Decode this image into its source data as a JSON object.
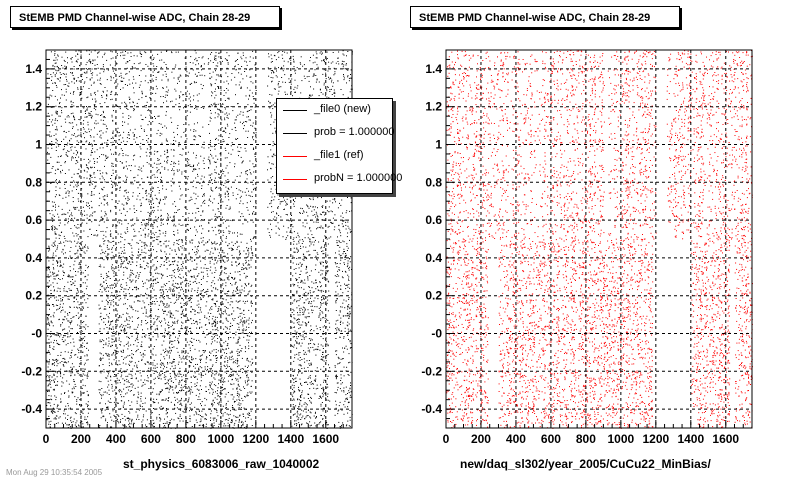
{
  "chart_data": [
    {
      "type": "scatter",
      "title": "StEMB PMD Channel-wise ADC, Chain 28-29",
      "xlabel": "st_physics_6083006_raw_1040002",
      "ylabel": "",
      "xlim": [
        0,
        1750
      ],
      "ylim": [
        -0.5,
        1.5
      ],
      "x_ticks": [
        0,
        200,
        400,
        600,
        800,
        1000,
        1200,
        1400,
        1600
      ],
      "y_ticks": [
        -0.4,
        -0.2,
        0,
        0.2,
        0.4,
        0.6,
        0.8,
        1,
        1.2,
        1.4
      ],
      "y_tick_labels": [
        "-0.4",
        "-0.2",
        "-0",
        "0.2",
        "0.4",
        "0.6",
        "0.8",
        "1",
        "1.2",
        "1.4"
      ],
      "grid": true,
      "color": "#000000",
      "legend": {
        "placement": "top-right",
        "entries": [
          {
            "label": "_file0 (new)",
            "color": "#000000"
          },
          {
            "label": "prob = 1.000000",
            "color": "#000000"
          },
          {
            "label": "_file1 (ref)",
            "color": "#ff0000"
          },
          {
            "label": "probN = 1.000000",
            "color": "#ff0000"
          }
        ]
      }
    },
    {
      "type": "scatter",
      "title": "StEMB PMD Channel-wise ADC, Chain 28-29",
      "xlabel": "new/daq_sl302/year_2005/CuCu22_MinBias/",
      "ylabel": "",
      "xlim": [
        0,
        1750
      ],
      "ylim": [
        -0.5,
        1.5
      ],
      "x_ticks": [
        0,
        200,
        400,
        600,
        800,
        1000,
        1200,
        1400,
        1600
      ],
      "y_ticks": [
        -0.4,
        -0.2,
        0,
        0.2,
        0.4,
        0.6,
        0.8,
        1,
        1.2,
        1.4
      ],
      "y_tick_labels": [
        "-0.4",
        "-0.2",
        "-0",
        "0.2",
        "0.4",
        "0.6",
        "0.8",
        "1",
        "1.2",
        "1.4"
      ],
      "grid": true,
      "color": "#ff0000"
    }
  ],
  "footer": {
    "stamp": "Mon Aug 29 10:35:54 2005"
  }
}
